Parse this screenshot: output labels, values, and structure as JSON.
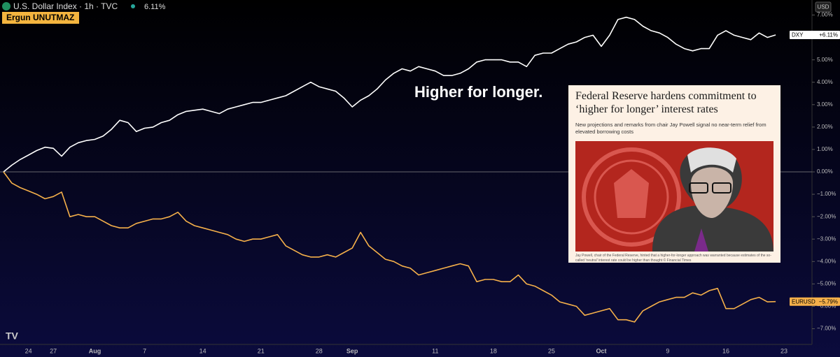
{
  "chart_data": {
    "type": "line",
    "header": {
      "symbol": "U.S. Dollar Index · 1h · TVC",
      "change": "6.11%",
      "author": "Ergun UNUTMAZ",
      "currency": "USD"
    },
    "annotation": "Higher for longer.",
    "article": {
      "title": "Federal Reserve hardens commitment to ‘higher for longer’ interest rates",
      "subtitle": "New projections and remarks from chair Jay Powell signal no near-term relief from elevated borrowing costs",
      "caption": "Jay Powell, chair of the Federal Reserve, hinted that a higher-for-longer approach was warranted because estimates of the so-called 'neutral' interest rate could be higher than thought © Financial Times"
    },
    "categories": [
      null,
      null,
      null,
      "24",
      null,
      null,
      "27",
      null,
      null,
      null,
      null,
      "Aug",
      null,
      null,
      null,
      null,
      null,
      "7",
      null,
      null,
      null,
      null,
      null,
      null,
      "14",
      null,
      null,
      null,
      null,
      null,
      null,
      "21",
      null,
      null,
      null,
      null,
      null,
      null,
      "28",
      null,
      null,
      null,
      "Sep",
      null,
      null,
      null,
      null,
      null,
      null,
      null,
      null,
      null,
      "11",
      null,
      null,
      null,
      null,
      null,
      null,
      "18",
      null,
      null,
      null,
      null,
      null,
      null,
      "25",
      null,
      null,
      null,
      null,
      null,
      "Oct",
      null,
      null,
      null,
      null,
      null,
      null,
      null,
      "9",
      null,
      null,
      null,
      null,
      null,
      null,
      "16",
      null,
      null,
      null,
      null,
      null,
      null,
      "23"
    ],
    "series": [
      {
        "name": "DXY",
        "color": "#ffffff",
        "last_label": "+6.11%",
        "values": [
          0,
          0.3,
          0.55,
          0.75,
          0.95,
          1.1,
          1.05,
          0.7,
          1.1,
          1.3,
          1.4,
          1.45,
          1.6,
          1.9,
          2.3,
          2.2,
          1.8,
          1.95,
          2.0,
          2.2,
          2.3,
          2.55,
          2.7,
          2.75,
          2.8,
          2.7,
          2.6,
          2.8,
          2.9,
          3.0,
          3.1,
          3.1,
          3.2,
          3.3,
          3.4,
          3.6,
          3.8,
          4.0,
          3.8,
          3.7,
          3.6,
          3.3,
          2.9,
          3.2,
          3.4,
          3.7,
          4.1,
          4.4,
          4.6,
          4.5,
          4.7,
          4.6,
          4.5,
          4.3,
          4.3,
          4.4,
          4.6,
          4.9,
          5.0,
          5.0,
          5.0,
          4.9,
          4.9,
          4.7,
          5.2,
          5.3,
          5.3,
          5.5,
          5.7,
          5.8,
          6.0,
          6.1,
          5.6,
          6.1,
          6.8,
          6.9,
          6.8,
          6.5,
          6.3,
          6.2,
          6.0,
          5.7,
          5.5,
          5.4,
          5.5,
          5.5,
          6.1,
          6.3,
          6.1,
          6.0,
          5.9,
          6.2,
          6.0,
          6.11,
          null
        ]
      },
      {
        "name": "EURUSD",
        "color": "#f5b04a",
        "last_label": "−5.79%",
        "values": [
          0,
          -0.5,
          -0.7,
          -0.85,
          -1.0,
          -1.2,
          -1.1,
          -0.9,
          -2.0,
          -1.9,
          -2.0,
          -2.0,
          -2.2,
          -2.4,
          -2.5,
          -2.5,
          -2.3,
          -2.2,
          -2.1,
          -2.1,
          -2.0,
          -1.8,
          -2.2,
          -2.4,
          -2.5,
          -2.6,
          -2.7,
          -2.8,
          -3.0,
          -3.1,
          -3.0,
          -3.0,
          -2.9,
          -2.8,
          -3.3,
          -3.5,
          -3.7,
          -3.8,
          -3.8,
          -3.7,
          -3.8,
          -3.6,
          -3.4,
          -2.7,
          -3.3,
          -3.6,
          -3.9,
          -4.0,
          -4.2,
          -4.3,
          -4.6,
          -4.5,
          -4.4,
          -4.3,
          -4.2,
          -4.1,
          -4.2,
          -4.9,
          -4.8,
          -4.8,
          -4.9,
          -4.9,
          -4.6,
          -5.0,
          -5.1,
          -5.3,
          -5.5,
          -5.8,
          -5.9,
          -6.0,
          -6.4,
          -6.3,
          -6.2,
          -6.1,
          -6.6,
          -6.6,
          -6.7,
          -6.2,
          -6.0,
          -5.8,
          -5.7,
          -5.6,
          -5.6,
          -5.4,
          -5.5,
          -5.3,
          -5.2,
          -6.1,
          -6.1,
          -5.9,
          -5.7,
          -5.6,
          -5.8,
          -5.79,
          null
        ]
      }
    ],
    "ylim": [
      -7.7,
      7.67
    ],
    "yticks": [
      {
        "value": 7,
        "label": "7.00%"
      },
      {
        "value": 6,
        "label": "6.00%"
      },
      {
        "value": 5,
        "label": "5.00%"
      },
      {
        "value": 4,
        "label": "4.00%"
      },
      {
        "value": 3,
        "label": "3.00%"
      },
      {
        "value": 2,
        "label": "2.00%"
      },
      {
        "value": 1,
        "label": "1.00%"
      },
      {
        "value": 0,
        "label": "0.00%"
      },
      {
        "value": -1,
        "label": "−1.00%"
      },
      {
        "value": -2,
        "label": "−2.00%"
      },
      {
        "value": -3,
        "label": "−3.00%"
      },
      {
        "value": -4,
        "label": "−4.00%"
      },
      {
        "value": -5,
        "label": "−5.00%"
      },
      {
        "value": -6,
        "label": "−6.00%"
      },
      {
        "value": -7,
        "label": "−7.00%"
      }
    ]
  }
}
